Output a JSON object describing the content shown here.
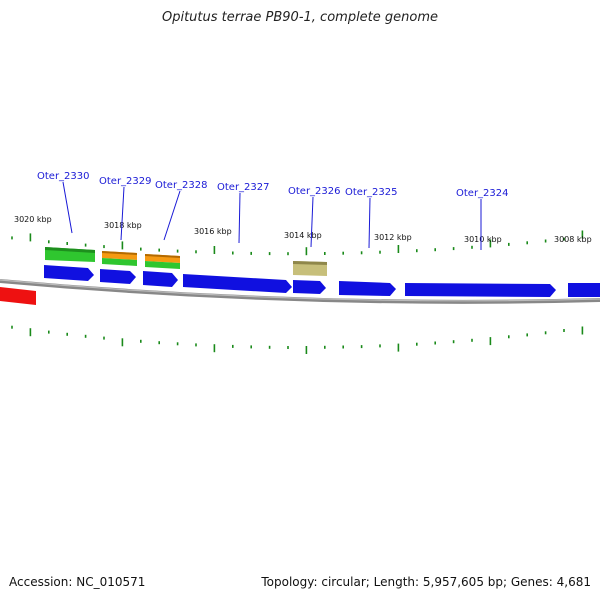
{
  "header": {
    "title": "Opitutus terrae PB90-1, complete genome"
  },
  "footer": {
    "accession": "Accession: NC_010571",
    "summary": "Topology: circular; Length: 5,957,605 bp; Genes: 4,681"
  },
  "colors": {
    "cds": "#1010e0",
    "rna_green": "#2fc62f",
    "rna_orange": "#f59a12",
    "misc": "#c7bf7a",
    "highlight": "#ee1111",
    "tick": "#1a8a1a",
    "backbone": "#888888",
    "label": "#1a1ad6"
  },
  "scale_labels": [
    "3020 kbp",
    "3018 kbp",
    "3016 kbp",
    "3014 kbp",
    "3012 kbp",
    "3010 kbp",
    "3008 kbp"
  ],
  "gene_labels": [
    "Oter_2330",
    "Oter_2329",
    "Oter_2328",
    "Oter_2327",
    "Oter_2326",
    "Oter_2325",
    "Oter_2324"
  ]
}
